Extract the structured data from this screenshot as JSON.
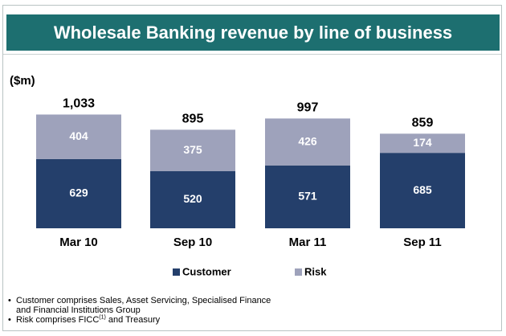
{
  "chart_data": {
    "type": "stacked_bar",
    "title": "Wholesale Banking revenue by line of business",
    "y_label": "($m)",
    "categories": [
      "Mar 10",
      "Sep 10",
      "Mar 11",
      "Sep 11"
    ],
    "series": [
      {
        "name": "Customer",
        "color": "#243f6b",
        "values": [
          629,
          520,
          571,
          685
        ]
      },
      {
        "name": "Risk",
        "color": "#9ea2bb",
        "values": [
          404,
          375,
          426,
          174
        ]
      }
    ],
    "totals": {
      "values": [
        1033,
        895,
        997,
        859
      ],
      "value_labels": [
        "1,033",
        "895",
        "997",
        "859"
      ]
    },
    "legend": "bottom",
    "notes": [
      {
        "text": "Customer comprises Sales, Asset Servicing, Specialised Finance and Financial Institutions Group"
      },
      {
        "text": "Risk comprises FICC",
        "superscript": "(1)",
        "after": " and Treasury"
      }
    ]
  }
}
